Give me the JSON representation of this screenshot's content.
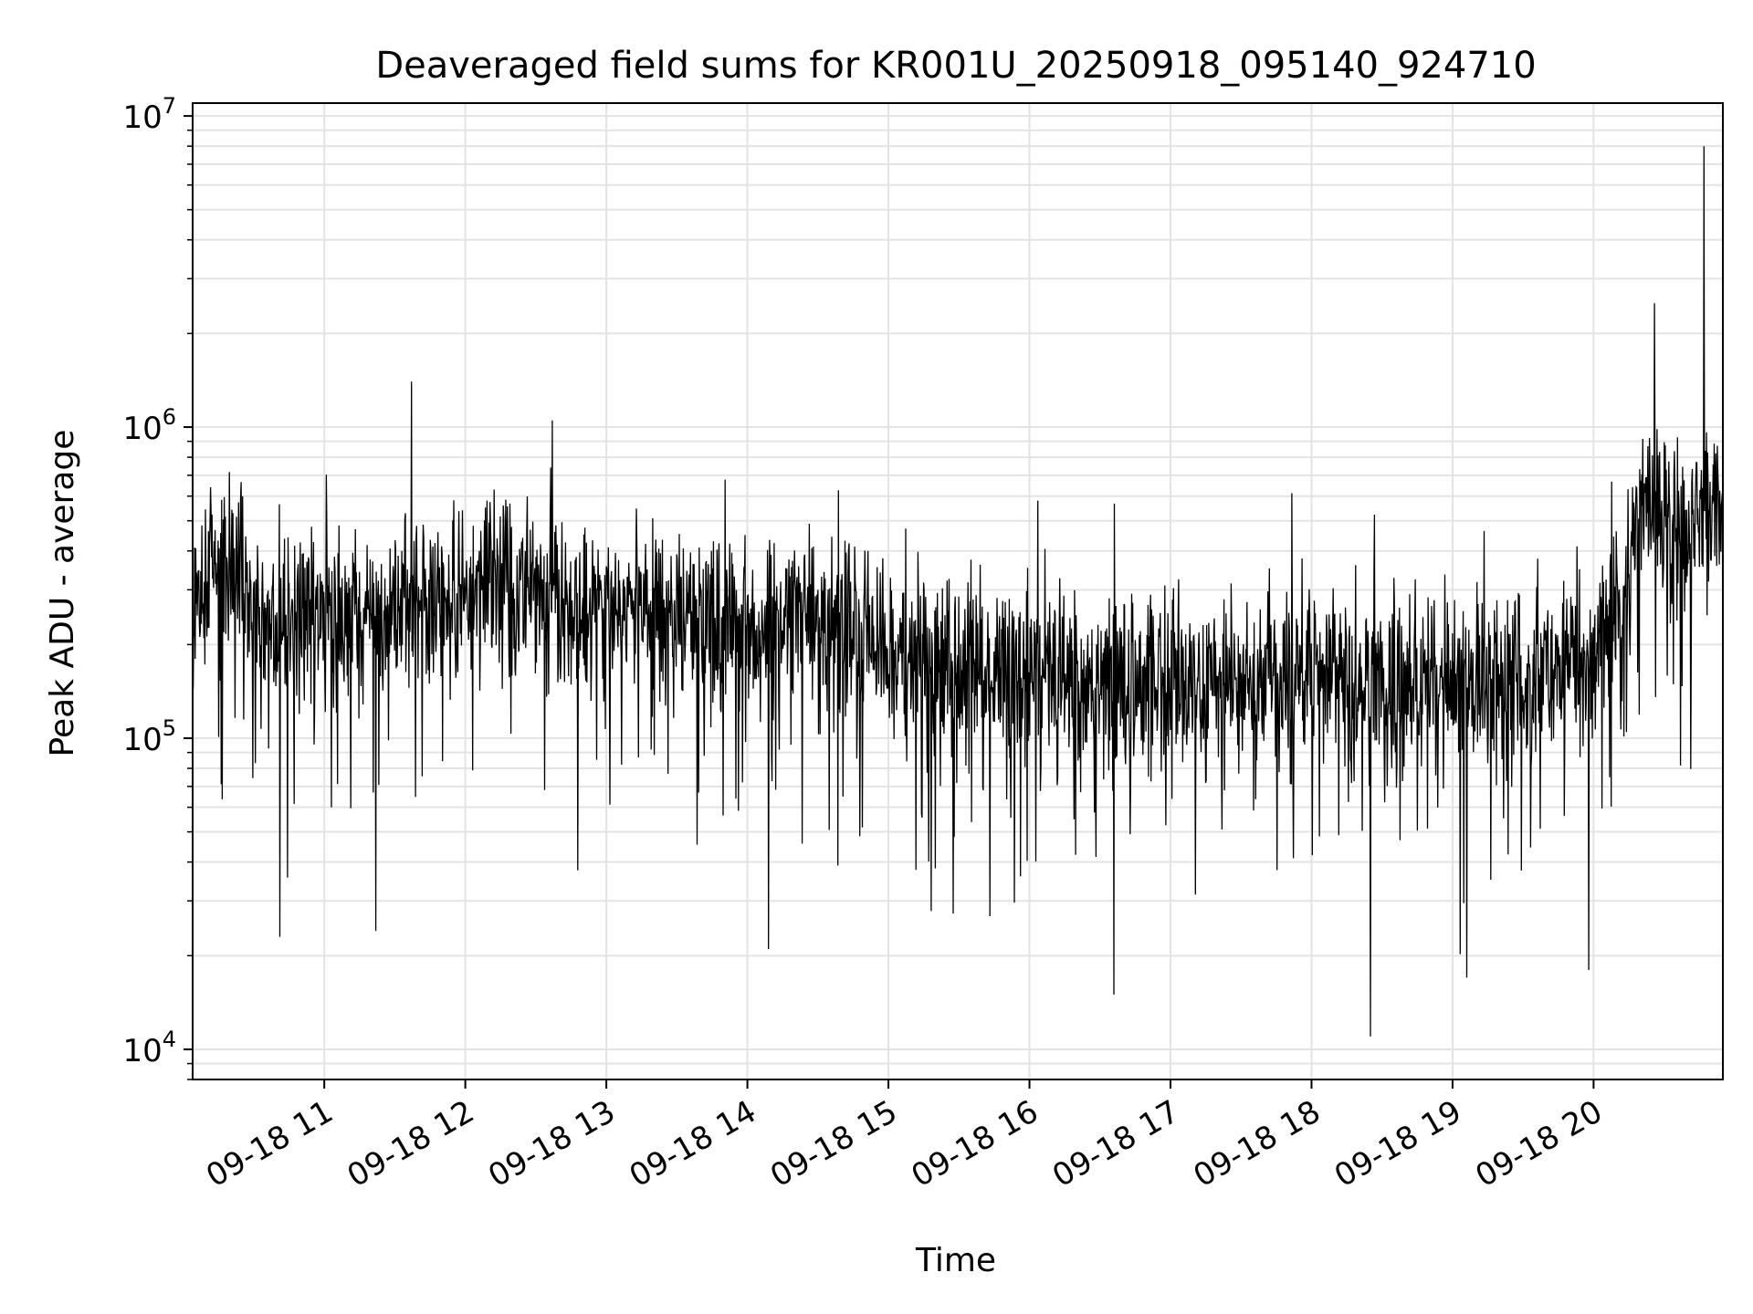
{
  "chart_data": {
    "type": "line",
    "title": "Deaveraged field sums for KR001U_20250918_095140_924710",
    "xlabel": "Time",
    "ylabel": "Peak ADU - average",
    "yscale": "log",
    "grid": true,
    "legend": "none",
    "line_color": "#000000",
    "grid_color": "#e3e3e3",
    "xlim_hours": [
      "2025-09-18 10:04",
      "2025-09-18 20:55"
    ],
    "ylim": [
      8000,
      11000000
    ],
    "x_ticks": [
      {
        "value": "2025-09-18 11:00",
        "label": "09-18 11"
      },
      {
        "value": "2025-09-18 12:00",
        "label": "09-18 12"
      },
      {
        "value": "2025-09-18 13:00",
        "label": "09-18 13"
      },
      {
        "value": "2025-09-18 14:00",
        "label": "09-18 14"
      },
      {
        "value": "2025-09-18 15:00",
        "label": "09-18 15"
      },
      {
        "value": "2025-09-18 16:00",
        "label": "09-18 16"
      },
      {
        "value": "2025-09-18 17:00",
        "label": "09-18 17"
      },
      {
        "value": "2025-09-18 18:00",
        "label": "09-18 18"
      },
      {
        "value": "2025-09-18 19:00",
        "label": "09-18 19"
      },
      {
        "value": "2025-09-18 20:00",
        "label": "09-18 20"
      }
    ],
    "y_ticks": [
      {
        "value": 10000,
        "base": "10",
        "exp": "4"
      },
      {
        "value": 100000,
        "base": "10",
        "exp": "5"
      },
      {
        "value": 1000000,
        "base": "10",
        "exp": "6"
      },
      {
        "value": 10000000,
        "base": "10",
        "exp": "7"
      }
    ],
    "series": [
      {
        "x": [
          "2025-09-18 10:04",
          "2025-09-18 10:10",
          "2025-09-18 10:20",
          "2025-09-18 10:30",
          "2025-09-18 10:40",
          "2025-09-18 10:50",
          "2025-09-18 11:00",
          "2025-09-18 11:10",
          "2025-09-18 11:20",
          "2025-09-18 11:30",
          "2025-09-18 11:40",
          "2025-09-18 11:50",
          "2025-09-18 12:00",
          "2025-09-18 12:10",
          "2025-09-18 12:20",
          "2025-09-18 12:30",
          "2025-09-18 12:40",
          "2025-09-18 12:50",
          "2025-09-18 13:00",
          "2025-09-18 13:10",
          "2025-09-18 13:20",
          "2025-09-18 13:30",
          "2025-09-18 13:40",
          "2025-09-18 13:50",
          "2025-09-18 14:00",
          "2025-09-18 14:10",
          "2025-09-18 14:20",
          "2025-09-18 14:30",
          "2025-09-18 14:40",
          "2025-09-18 14:50",
          "2025-09-18 15:00",
          "2025-09-18 15:10",
          "2025-09-18 15:20",
          "2025-09-18 15:30",
          "2025-09-18 15:40",
          "2025-09-18 15:50",
          "2025-09-18 16:00",
          "2025-09-18 16:10",
          "2025-09-18 16:20",
          "2025-09-18 16:30",
          "2025-09-18 16:40",
          "2025-09-18 16:50",
          "2025-09-18 17:00",
          "2025-09-18 17:10",
          "2025-09-18 17:20",
          "2025-09-18 17:30",
          "2025-09-18 17:40",
          "2025-09-18 17:50",
          "2025-09-18 18:00",
          "2025-09-18 18:10",
          "2025-09-18 18:20",
          "2025-09-18 18:30",
          "2025-09-18 18:40",
          "2025-09-18 18:50",
          "2025-09-18 19:00",
          "2025-09-18 19:10",
          "2025-09-18 19:20",
          "2025-09-18 19:30",
          "2025-09-18 19:40",
          "2025-09-18 19:50",
          "2025-09-18 20:00",
          "2025-09-18 20:10",
          "2025-09-18 20:20",
          "2025-09-18 20:30",
          "2025-09-18 20:40",
          "2025-09-18 20:50",
          "2025-09-18 20:55"
        ],
        "y": [
          200000,
          380000,
          330000,
          260000,
          230000,
          250000,
          270000,
          250000,
          260000,
          270000,
          280000,
          270000,
          290000,
          300000,
          290000,
          300000,
          280000,
          270000,
          290000,
          280000,
          250000,
          240000,
          230000,
          230000,
          240000,
          220000,
          230000,
          220000,
          210000,
          200000,
          190000,
          180000,
          175000,
          175000,
          170000,
          165000,
          165000,
          160000,
          155000,
          155000,
          150000,
          150000,
          150000,
          150000,
          150000,
          150000,
          150000,
          150000,
          155000,
          150000,
          155000,
          155000,
          150000,
          150000,
          150000,
          150000,
          145000,
          145000,
          160000,
          170000,
          190000,
          300000,
          580000,
          520000,
          470000,
          540000,
          560000
        ],
        "spikes": [
          {
            "x": "2025-09-18 11:37",
            "y": 1400000
          },
          {
            "x": "2025-09-18 12:37",
            "y": 1050000
          },
          {
            "x": "2025-09-18 20:26",
            "y": 2500000
          },
          {
            "x": "2025-09-18 20:47",
            "y": 8000000
          }
        ],
        "dips": [
          {
            "x": "2025-09-18 10:41",
            "y": 23000
          },
          {
            "x": "2025-09-18 11:22",
            "y": 24000
          },
          {
            "x": "2025-09-18 14:09",
            "y": 21000
          },
          {
            "x": "2025-09-18 16:36",
            "y": 15000
          },
          {
            "x": "2025-09-18 18:25",
            "y": 11000
          },
          {
            "x": "2025-09-18 19:06",
            "y": 17000
          },
          {
            "x": "2025-09-18 19:58",
            "y": 18000
          }
        ]
      }
    ]
  }
}
